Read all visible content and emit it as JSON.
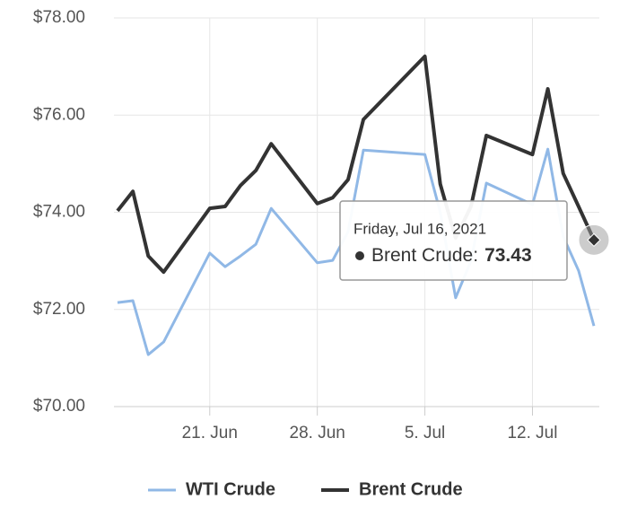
{
  "chart_data": {
    "type": "line",
    "x": [
      "2021-06-15",
      "2021-06-16",
      "2021-06-17",
      "2021-06-18",
      "2021-06-21",
      "2021-06-22",
      "2021-06-23",
      "2021-06-24",
      "2021-06-25",
      "2021-06-28",
      "2021-06-29",
      "2021-06-30",
      "2021-07-01",
      "2021-07-05",
      "2021-07-06",
      "2021-07-07",
      "2021-07-08",
      "2021-07-09",
      "2021-07-12",
      "2021-07-13",
      "2021-07-14",
      "2021-07-15",
      "2021-07-16"
    ],
    "series": [
      {
        "name": "WTI Crude",
        "color": "#90b8e6",
        "values": [
          72.14,
          72.18,
          71.07,
          71.33,
          73.16,
          72.88,
          73.1,
          73.34,
          74.08,
          72.96,
          73.01,
          73.6,
          75.28,
          75.19,
          74.0,
          72.24,
          73.0,
          74.6,
          74.16,
          75.3,
          73.5,
          72.8,
          71.66
        ]
      },
      {
        "name": "Brent Crude",
        "color": "#333333",
        "values": [
          74.03,
          74.43,
          73.1,
          72.77,
          74.08,
          74.12,
          74.55,
          74.86,
          75.41,
          74.18,
          74.3,
          74.67,
          75.91,
          77.21,
          74.58,
          73.47,
          74.12,
          75.58,
          75.19,
          76.54,
          74.8,
          74.12,
          73.43
        ]
      }
    ],
    "xlim": [
      "2021-06-15",
      "2021-07-16"
    ],
    "xticks": [
      {
        "value": "2021-06-21",
        "label": "21. Jun"
      },
      {
        "value": "2021-06-28",
        "label": "28. Jun"
      },
      {
        "value": "2021-07-05",
        "label": "5. Jul"
      },
      {
        "value": "2021-07-12",
        "label": "12. Jul"
      }
    ],
    "ylim": [
      70,
      78
    ],
    "yticks": [
      {
        "value": 70,
        "label": "$70.00"
      },
      {
        "value": 72,
        "label": "$72.00"
      },
      {
        "value": 74,
        "label": "$74.00"
      },
      {
        "value": 76,
        "label": "$76.00"
      },
      {
        "value": 78,
        "label": "$78.00"
      }
    ],
    "grid": true,
    "legend": "bottom",
    "tooltip": {
      "title": "Friday, Jul 16, 2021",
      "separator": ":"
    }
  }
}
